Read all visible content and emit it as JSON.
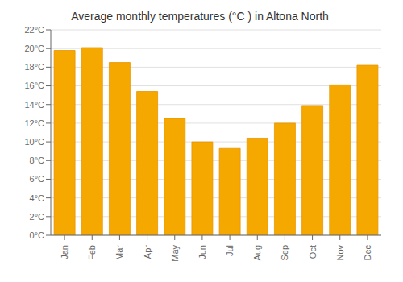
{
  "chart_data": {
    "type": "bar",
    "title": "Average monthly temperatures (°C ) in Altona North",
    "categories": [
      "Jan",
      "Feb",
      "Mar",
      "Apr",
      "May",
      "Jun",
      "Jul",
      "Aug",
      "Sep",
      "Oct",
      "Nov",
      "Dec"
    ],
    "values": [
      19.8,
      20.1,
      18.5,
      15.4,
      12.5,
      10.0,
      9.3,
      10.4,
      12.0,
      13.9,
      16.1,
      18.2
    ],
    "color": "#F5A800",
    "ylim": [
      0,
      22
    ],
    "yticks": [
      {
        "value": 0,
        "label": "0°C"
      },
      {
        "value": 2,
        "label": "2°C"
      },
      {
        "value": 4,
        "label": "4°C"
      },
      {
        "value": 6,
        "label": "6°C"
      },
      {
        "value": 8,
        "label": "8°C"
      },
      {
        "value": 10,
        "label": "10°C"
      },
      {
        "value": 12,
        "label": "12°C"
      },
      {
        "value": 14,
        "label": "14°C"
      },
      {
        "value": 16,
        "label": "16°C"
      },
      {
        "value": 18,
        "label": "18°C"
      },
      {
        "value": 20,
        "label": "20°C"
      },
      {
        "value": 22,
        "label": "22°C"
      }
    ],
    "grid": true
  }
}
